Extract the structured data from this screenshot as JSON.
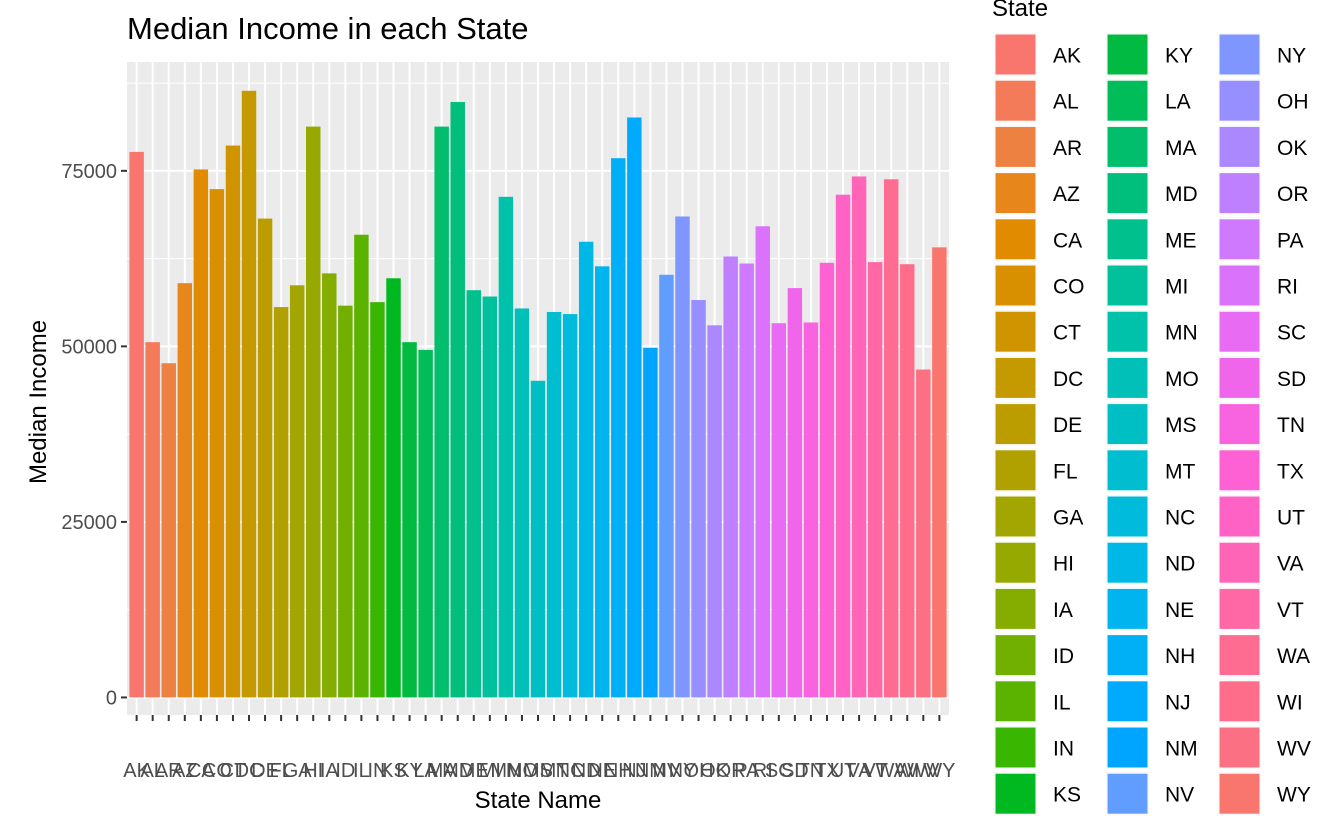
{
  "chart_data": {
    "type": "bar",
    "title": "Median Income in each State",
    "xlabel": "State Name",
    "ylabel": "Median Income",
    "legend_title": "State",
    "legend_position": "right",
    "grid": true,
    "ylim": [
      -2500,
      90500
    ],
    "y_ticks": [
      0,
      25000,
      50000,
      75000
    ],
    "categories": [
      "AK",
      "AL",
      "AR",
      "AZ",
      "CA",
      "CO",
      "CT",
      "DC",
      "DE",
      "FL",
      "GA",
      "HI",
      "IA",
      "ID",
      "IL",
      "IN",
      "KS",
      "KY",
      "LA",
      "MA",
      "MD",
      "ME",
      "MI",
      "MN",
      "MO",
      "MS",
      "MT",
      "NC",
      "ND",
      "NE",
      "NH",
      "NJ",
      "NM",
      "NV",
      "NY",
      "OH",
      "OK",
      "OR",
      "PA",
      "RI",
      "SC",
      "SD",
      "TN",
      "TX",
      "UT",
      "VA",
      "VT",
      "WA",
      "WI",
      "WV",
      "WY"
    ],
    "values": [
      77700,
      50600,
      47600,
      59000,
      75200,
      72400,
      78600,
      86400,
      68200,
      55600,
      58700,
      81300,
      60400,
      55800,
      65900,
      56300,
      59700,
      50600,
      49500,
      81300,
      84800,
      58000,
      57100,
      71300,
      55400,
      45100,
      54900,
      54600,
      64900,
      61400,
      76800,
      82600,
      49800,
      60200,
      68500,
      56600,
      53000,
      62800,
      61800,
      67100,
      53300,
      58300,
      53400,
      61900,
      71600,
      74200,
      62000,
      73800,
      61700,
      46700,
      64100
    ],
    "colors": [
      "#F8766D",
      "#F37B59",
      "#ED8141",
      "#E7861B",
      "#E08B00",
      "#D89000",
      "#CF9400",
      "#C59900",
      "#BB9D00",
      "#B0A100",
      "#A3A500",
      "#95A900",
      "#85AD00",
      "#72B000",
      "#5BB300",
      "#39B600",
      "#00B81F",
      "#00BA42",
      "#00BC59",
      "#00BE6C",
      "#00BF7D",
      "#00C08D",
      "#00C19C",
      "#00C1AA",
      "#00C0B8",
      "#00BFC4",
      "#00BDD0",
      "#00BBDB",
      "#00B8E5",
      "#00B4EF",
      "#00B0F6",
      "#00ABFD",
      "#00A5FF",
      "#619CFF",
      "#7F96FF",
      "#978FFF",
      "#AC88FF",
      "#BE80FF",
      "#CE79FF",
      "#DB72FB",
      "#E76BF3",
      "#F066EA",
      "#F863DF",
      "#FD61D3",
      "#FF62C5",
      "#FF65B6",
      "#FF68A5",
      "#FF6C92",
      "#FE6E8A",
      "#FB7082",
      "#F8766D"
    ]
  }
}
